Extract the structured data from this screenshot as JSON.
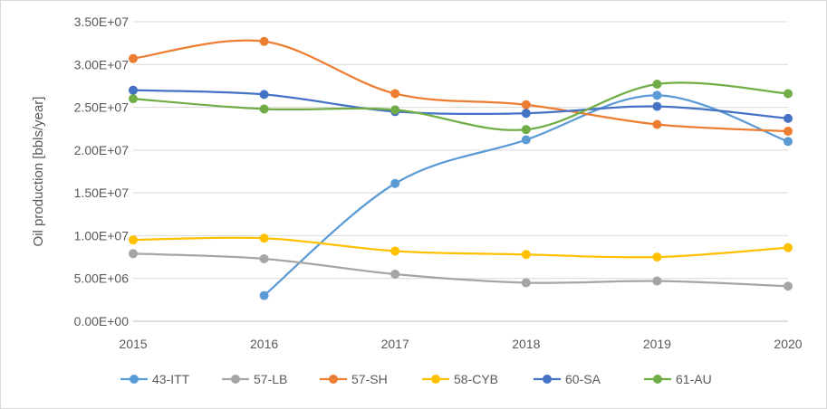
{
  "chart_data": {
    "type": "line",
    "x": [
      2015,
      2016,
      2017,
      2018,
      2019,
      2020
    ],
    "xlabel": "",
    "ylabel": "Oil production [bbls/year]",
    "ylim": [
      0,
      35000000
    ],
    "yticks": [
      0,
      5000000,
      10000000,
      15000000,
      20000000,
      25000000,
      30000000,
      35000000
    ],
    "ytick_labels": [
      "0.00E+00",
      "5.00E+06",
      "1.00E+07",
      "1.50E+07",
      "2.00E+07",
      "2.50E+07",
      "3.00E+07",
      "3.50E+07"
    ],
    "xtick_labels": [
      "2015",
      "2016",
      "2017",
      "2018",
      "2019",
      "2020"
    ],
    "grid": "horizontal",
    "legend": "bottom",
    "smooth": true,
    "series": [
      {
        "name": "43-ITT",
        "color": "#5B9BD5",
        "values": [
          null,
          3000000,
          16100000,
          21200000,
          26400000,
          21000000
        ]
      },
      {
        "name": "57-LB",
        "color": "#A5A5A5",
        "values": [
          7900000,
          7300000,
          5500000,
          4500000,
          4700000,
          4100000
        ]
      },
      {
        "name": "57-SH",
        "color": "#ED7D31",
        "values": [
          30700000,
          32700000,
          26600000,
          25300000,
          23000000,
          22200000
        ]
      },
      {
        "name": "58-CYB",
        "color": "#FFC000",
        "values": [
          9500000,
          9700000,
          8200000,
          7800000,
          7500000,
          8600000
        ]
      },
      {
        "name": "60-SA",
        "color": "#4472C4",
        "values": [
          27000000,
          26500000,
          24500000,
          24300000,
          25100000,
          23700000
        ]
      },
      {
        "name": "61-AU",
        "color": "#70AD47",
        "values": [
          26000000,
          24800000,
          24700000,
          22400000,
          27700000,
          26600000
        ]
      }
    ]
  }
}
